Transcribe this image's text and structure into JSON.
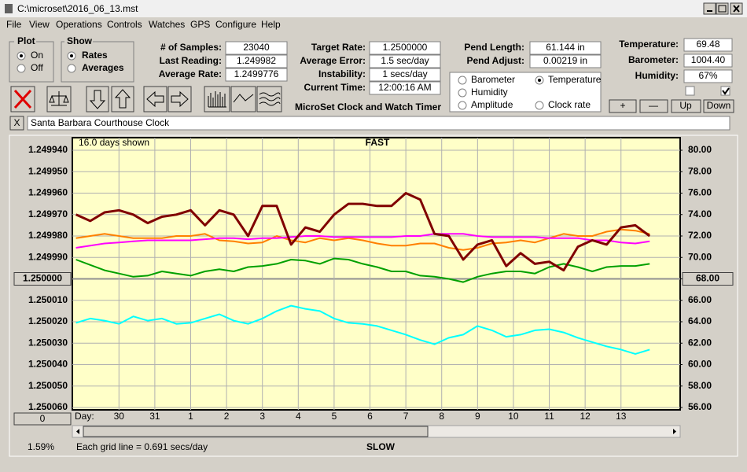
{
  "title_bar": {
    "title": "C:\\microset\\2016_06_13.mst"
  },
  "menu": [
    "File",
    "View",
    "Operations",
    "Controls",
    "Watches",
    "GPS",
    "Configure",
    "Help"
  ],
  "plot_group": {
    "label": "Plot",
    "options": [
      "On",
      "Off"
    ]
  },
  "show_group": {
    "label": "Show",
    "options": [
      "Rates",
      "Averages"
    ]
  },
  "readings": [
    {
      "label": "# of Samples:",
      "value": "23040"
    },
    {
      "label": "Last Reading:",
      "value": "1.249982"
    },
    {
      "label": "Average Rate:",
      "value": "1.2499776"
    },
    {
      "label": "Target Rate:",
      "value": "1.2500000"
    },
    {
      "label": "Average Error:",
      "value": "1.5 sec/day"
    },
    {
      "label": "Instability:",
      "value": "1 secs/day"
    },
    {
      "label": "Current Time:",
      "value": "12:00:16 AM"
    },
    {
      "label": "Pend Length:",
      "value": "61.144 in"
    },
    {
      "label": "Pend Adjust:",
      "value": "0.00219 in"
    },
    {
      "label": "Temperature:",
      "value": "69.48"
    },
    {
      "label": "Barometer:",
      "value": "1004.40"
    },
    {
      "label": "Humidity:",
      "value": "67%"
    }
  ],
  "app_title": "MicroSet Clock and Watch Timer",
  "buttons": [
    "+",
    "—",
    "Up",
    "Down"
  ],
  "clock": {
    "close": "X",
    "name": "Santa Barbara Courthouse Clock"
  },
  "chart_data": {
    "type": "line",
    "days_shown": "16.0 days shown",
    "top_label": "FAST",
    "bottom_label": "SLOW",
    "x_label": "Day:",
    "grid_note": "Each grid line = 0.691 secs/day",
    "scroll_percent": "1.59%",
    "reset_button": "0",
    "grid": true,
    "x": [
      -1.2,
      -0.8,
      -0.4,
      0,
      0.4,
      0.8,
      1.2,
      1.6,
      2,
      2.4,
      2.8,
      3.2,
      3.6,
      4,
      4.4,
      4.8,
      5.2,
      5.6,
      6,
      6.4,
      6.8,
      7.2,
      7.6,
      8,
      8.4,
      8.8,
      9.2,
      9.6,
      10,
      10.4,
      10.8,
      11.2,
      11.6,
      12,
      12.4,
      12.8,
      13.2,
      13.6,
      14,
      14.4,
      14.8
    ],
    "xlim": [
      -1.3,
      15.65
    ],
    "xticks": [
      {
        "value": 0,
        "label": "30"
      },
      {
        "value": 1,
        "label": "31"
      },
      {
        "value": 2,
        "label": "1"
      },
      {
        "value": 3,
        "label": "2"
      },
      {
        "value": 4,
        "label": "3"
      },
      {
        "value": 5,
        "label": "4"
      },
      {
        "value": 6,
        "label": "5"
      },
      {
        "value": 7,
        "label": "6"
      },
      {
        "value": 8,
        "label": "7"
      },
      {
        "value": 9,
        "label": "8"
      },
      {
        "value": 10,
        "label": "9"
      },
      {
        "value": 11,
        "label": "10"
      },
      {
        "value": 12,
        "label": "11"
      },
      {
        "value": 13,
        "label": "12"
      },
      {
        "value": 14,
        "label": "13"
      }
    ],
    "ylim": [
      1.25006,
      1.24994
    ],
    "yticks": [
      {
        "value": 1.24994,
        "label": "1.249940"
      },
      {
        "value": 1.24995,
        "label": "1.249950"
      },
      {
        "value": 1.24996,
        "label": "1.249960"
      },
      {
        "value": 1.24997,
        "label": "1.249970"
      },
      {
        "value": 1.24998,
        "label": "1.249980"
      },
      {
        "value": 1.24999,
        "label": "1.249990"
      },
      {
        "value": 1.25,
        "label": "1.250000"
      },
      {
        "value": 1.25001,
        "label": "1.250010"
      },
      {
        "value": 1.25002,
        "label": "1.250020"
      },
      {
        "value": 1.25003,
        "label": "1.250030"
      },
      {
        "value": 1.25004,
        "label": "1.250040"
      },
      {
        "value": 1.25005,
        "label": "1.250050"
      },
      {
        "value": 1.25006,
        "label": "1.250060"
      }
    ],
    "y2lim": [
      56,
      80
    ],
    "y2ticks": [
      {
        "value": 80,
        "label": "80.00"
      },
      {
        "value": 78,
        "label": "78.00"
      },
      {
        "value": 76,
        "label": "76.00"
      },
      {
        "value": 74,
        "label": "74.00"
      },
      {
        "value": 72,
        "label": "72.00"
      },
      {
        "value": 70,
        "label": "70.00"
      },
      {
        "value": 68,
        "label": "68.00"
      },
      {
        "value": 66,
        "label": "66.00"
      },
      {
        "value": 64,
        "label": "64.00"
      },
      {
        "value": 62,
        "label": "62.00"
      },
      {
        "value": 60,
        "label": "60.00"
      },
      {
        "value": 58,
        "label": "58.00"
      },
      {
        "value": 56,
        "label": "56.00"
      }
    ],
    "series": [
      {
        "name": "Barometer",
        "color": "#ff8000",
        "axis": "y2",
        "values": [
          71.8,
          72.0,
          72.2,
          72.0,
          71.8,
          71.8,
          71.8,
          72.0,
          72.0,
          72.2,
          71.6,
          71.5,
          71.3,
          71.4,
          72.0,
          71.6,
          71.4,
          71.8,
          71.6,
          71.8,
          71.6,
          71.3,
          71.1,
          71.1,
          71.3,
          71.3,
          70.9,
          70.7,
          70.9,
          71.3,
          71.4,
          71.6,
          71.4,
          71.8,
          72.2,
          72.0,
          72.0,
          72.4,
          72.6,
          72.5,
          72.2
        ]
      },
      {
        "name": "Temperature",
        "color": "#00a000",
        "axis": "y2",
        "values": [
          69.8,
          69.3,
          68.8,
          68.5,
          68.2,
          68.3,
          68.7,
          68.5,
          68.3,
          68.7,
          68.9,
          68.7,
          69.1,
          69.2,
          69.4,
          69.8,
          69.7,
          69.4,
          69.9,
          69.8,
          69.4,
          69.1,
          68.7,
          68.7,
          68.3,
          68.2,
          68.0,
          67.7,
          68.2,
          68.5,
          68.7,
          68.7,
          68.5,
          69.1,
          69.4,
          69.1,
          68.7,
          69.1,
          69.2,
          69.2,
          69.4
        ]
      },
      {
        "name": "Humidity",
        "color": "#ff00ff",
        "axis": "y2",
        "values": [
          70.9,
          71.1,
          71.3,
          71.4,
          71.5,
          71.6,
          71.6,
          71.6,
          71.6,
          71.7,
          71.8,
          71.8,
          71.7,
          71.8,
          71.8,
          71.9,
          72.0,
          72.0,
          71.9,
          71.9,
          71.9,
          71.9,
          71.9,
          72.0,
          72.0,
          72.2,
          72.2,
          72.2,
          72.0,
          71.9,
          71.9,
          71.9,
          71.9,
          71.8,
          71.8,
          71.8,
          71.6,
          71.6,
          71.4,
          71.3,
          71.5
        ]
      },
      {
        "name": "Amplitude",
        "color": "#00ffff",
        "axis": "y2",
        "values": [
          63.9,
          64.3,
          64.1,
          63.8,
          64.5,
          64.1,
          64.3,
          63.8,
          63.9,
          64.3,
          64.7,
          64.1,
          63.8,
          64.3,
          65.0,
          65.5,
          65.2,
          65.0,
          64.3,
          63.9,
          63.8,
          63.6,
          63.2,
          62.8,
          62.3,
          61.9,
          62.5,
          62.8,
          63.6,
          63.2,
          62.6,
          62.8,
          63.2,
          63.3,
          63.0,
          62.5,
          62.1,
          61.7,
          61.4,
          61.0,
          61.4
        ]
      },
      {
        "name": "Clock rate",
        "color": "#800000",
        "axis": "y",
        "values": [
          1.24997,
          1.249973,
          1.249969,
          1.249968,
          1.24997,
          1.249974,
          1.249971,
          1.24997,
          1.249968,
          1.249975,
          1.249968,
          1.24997,
          1.24998,
          1.249966,
          1.249966,
          1.249984,
          1.249976,
          1.249978,
          1.24997,
          1.249965,
          1.249965,
          1.249966,
          1.249966,
          1.24996,
          1.249963,
          1.249979,
          1.24998,
          1.249991,
          1.249984,
          1.249982,
          1.249994,
          1.249988,
          1.249993,
          1.249992,
          1.249996,
          1.249985,
          1.249982,
          1.249984,
          1.249976,
          1.249975,
          1.24998
        ]
      }
    ]
  }
}
